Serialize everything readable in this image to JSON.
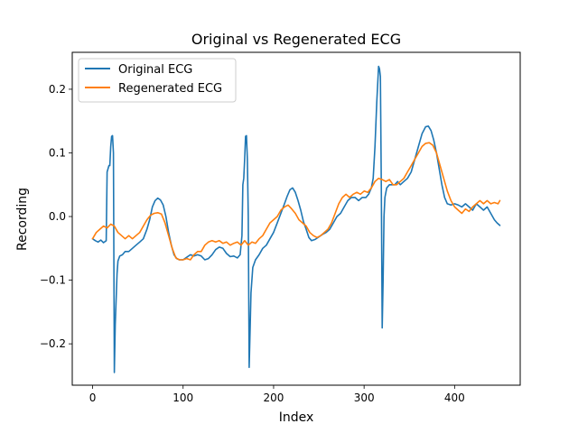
{
  "chart_data": {
    "type": "line",
    "title": "Original vs Regenerated ECG",
    "xlabel": "Index",
    "ylabel": "Recording",
    "xlim": [
      -22.5,
      472.5
    ],
    "ylim": [
      -0.265,
      0.258
    ],
    "xticks": [
      0,
      100,
      200,
      300,
      400
    ],
    "xtick_labels": [
      "0",
      "100",
      "200",
      "300",
      "400"
    ],
    "yticks": [
      -0.2,
      -0.1,
      0.0,
      0.1,
      0.2
    ],
    "ytick_labels": [
      "−0.2",
      "−0.1",
      "0.0",
      "0.1",
      "0.2"
    ],
    "grid": false,
    "legend_position": "upper-left",
    "series": [
      {
        "name": "Original ECG",
        "color": "#1f77b4",
        "points": [
          [
            0,
            -0.035
          ],
          [
            3,
            -0.038
          ],
          [
            6,
            -0.04
          ],
          [
            9,
            -0.037
          ],
          [
            12,
            -0.041
          ],
          [
            15,
            -0.038
          ],
          [
            16,
            0.07
          ],
          [
            17,
            0.075
          ],
          [
            18,
            0.08
          ],
          [
            19,
            0.08
          ],
          [
            20,
            0.11
          ],
          [
            21,
            0.126
          ],
          [
            22,
            0.127
          ],
          [
            23,
            0.1
          ],
          [
            24,
            -0.245
          ],
          [
            25,
            -0.17
          ],
          [
            26,
            -0.13
          ],
          [
            27,
            -0.09
          ],
          [
            28,
            -0.07
          ],
          [
            30,
            -0.062
          ],
          [
            33,
            -0.06
          ],
          [
            36,
            -0.055
          ],
          [
            40,
            -0.055
          ],
          [
            44,
            -0.05
          ],
          [
            48,
            -0.045
          ],
          [
            52,
            -0.04
          ],
          [
            56,
            -0.035
          ],
          [
            60,
            -0.02
          ],
          [
            63,
            -0.005
          ],
          [
            66,
            0.015
          ],
          [
            69,
            0.025
          ],
          [
            72,
            0.029
          ],
          [
            75,
            0.026
          ],
          [
            78,
            0.018
          ],
          [
            81,
            0.0
          ],
          [
            84,
            -0.025
          ],
          [
            87,
            -0.045
          ],
          [
            90,
            -0.06
          ],
          [
            93,
            -0.066
          ],
          [
            96,
            -0.068
          ],
          [
            100,
            -0.068
          ],
          [
            104,
            -0.064
          ],
          [
            108,
            -0.06
          ],
          [
            112,
            -0.062
          ],
          [
            116,
            -0.06
          ],
          [
            120,
            -0.062
          ],
          [
            124,
            -0.068
          ],
          [
            128,
            -0.066
          ],
          [
            132,
            -0.06
          ],
          [
            136,
            -0.052
          ],
          [
            140,
            -0.048
          ],
          [
            144,
            -0.05
          ],
          [
            148,
            -0.058
          ],
          [
            152,
            -0.063
          ],
          [
            156,
            -0.062
          ],
          [
            160,
            -0.065
          ],
          [
            163,
            -0.06
          ],
          [
            165,
            -0.03
          ],
          [
            166,
            0.05
          ],
          [
            167,
            0.06
          ],
          [
            168,
            0.09
          ],
          [
            169,
            0.126
          ],
          [
            170,
            0.127
          ],
          [
            171,
            0.09
          ],
          [
            172,
            0.0
          ],
          [
            173,
            -0.237
          ],
          [
            174,
            -0.18
          ],
          [
            175,
            -0.12
          ],
          [
            177,
            -0.08
          ],
          [
            180,
            -0.068
          ],
          [
            184,
            -0.06
          ],
          [
            188,
            -0.05
          ],
          [
            192,
            -0.045
          ],
          [
            196,
            -0.035
          ],
          [
            200,
            -0.025
          ],
          [
            204,
            -0.01
          ],
          [
            208,
            0.005
          ],
          [
            212,
            0.02
          ],
          [
            215,
            0.032
          ],
          [
            218,
            0.042
          ],
          [
            221,
            0.045
          ],
          [
            224,
            0.038
          ],
          [
            227,
            0.025
          ],
          [
            230,
            0.01
          ],
          [
            233,
            -0.008
          ],
          [
            236,
            -0.02
          ],
          [
            239,
            -0.033
          ],
          [
            242,
            -0.038
          ],
          [
            246,
            -0.036
          ],
          [
            250,
            -0.032
          ],
          [
            254,
            -0.028
          ],
          [
            258,
            -0.025
          ],
          [
            262,
            -0.02
          ],
          [
            266,
            -0.01
          ],
          [
            270,
            0.0
          ],
          [
            274,
            0.005
          ],
          [
            278,
            0.015
          ],
          [
            282,
            0.025
          ],
          [
            286,
            0.03
          ],
          [
            290,
            0.03
          ],
          [
            294,
            0.025
          ],
          [
            298,
            0.03
          ],
          [
            302,
            0.03
          ],
          [
            305,
            0.035
          ],
          [
            308,
            0.045
          ],
          [
            310,
            0.06
          ],
          [
            312,
            0.11
          ],
          [
            314,
            0.18
          ],
          [
            316,
            0.236
          ],
          [
            317,
            0.232
          ],
          [
            318,
            0.22
          ],
          [
            319,
            0.05
          ],
          [
            320,
            -0.175
          ],
          [
            321,
            -0.1
          ],
          [
            322,
            0.0
          ],
          [
            323,
            0.03
          ],
          [
            325,
            0.045
          ],
          [
            328,
            0.05
          ],
          [
            331,
            0.05
          ],
          [
            334,
            0.05
          ],
          [
            337,
            0.055
          ],
          [
            340,
            0.05
          ],
          [
            344,
            0.055
          ],
          [
            348,
            0.06
          ],
          [
            352,
            0.07
          ],
          [
            356,
            0.09
          ],
          [
            360,
            0.11
          ],
          [
            364,
            0.13
          ],
          [
            368,
            0.141
          ],
          [
            371,
            0.142
          ],
          [
            374,
            0.135
          ],
          [
            377,
            0.12
          ],
          [
            380,
            0.1
          ],
          [
            383,
            0.075
          ],
          [
            386,
            0.05
          ],
          [
            389,
            0.03
          ],
          [
            392,
            0.02
          ],
          [
            396,
            0.018
          ],
          [
            400,
            0.02
          ],
          [
            404,
            0.018
          ],
          [
            408,
            0.015
          ],
          [
            412,
            0.02
          ],
          [
            416,
            0.015
          ],
          [
            420,
            0.01
          ],
          [
            424,
            0.02
          ],
          [
            428,
            0.015
          ],
          [
            432,
            0.01
          ],
          [
            436,
            0.015
          ],
          [
            440,
            0.005
          ],
          [
            444,
            -0.005
          ],
          [
            447,
            -0.01
          ],
          [
            450,
            -0.014
          ]
        ]
      },
      {
        "name": "Regenerated ECG",
        "color": "#ff7f0e",
        "points": [
          [
            0,
            -0.035
          ],
          [
            4,
            -0.025
          ],
          [
            8,
            -0.02
          ],
          [
            12,
            -0.015
          ],
          [
            16,
            -0.018
          ],
          [
            20,
            -0.012
          ],
          [
            24,
            -0.015
          ],
          [
            28,
            -0.025
          ],
          [
            32,
            -0.03
          ],
          [
            36,
            -0.035
          ],
          [
            40,
            -0.03
          ],
          [
            44,
            -0.035
          ],
          [
            48,
            -0.03
          ],
          [
            52,
            -0.025
          ],
          [
            56,
            -0.015
          ],
          [
            60,
            -0.005
          ],
          [
            64,
            0.002
          ],
          [
            68,
            0.005
          ],
          [
            72,
            0.006
          ],
          [
            76,
            0.004
          ],
          [
            80,
            -0.01
          ],
          [
            84,
            -0.03
          ],
          [
            88,
            -0.05
          ],
          [
            92,
            -0.065
          ],
          [
            96,
            -0.068
          ],
          [
            100,
            -0.068
          ],
          [
            104,
            -0.066
          ],
          [
            108,
            -0.068
          ],
          [
            112,
            -0.06
          ],
          [
            116,
            -0.055
          ],
          [
            120,
            -0.055
          ],
          [
            124,
            -0.045
          ],
          [
            128,
            -0.04
          ],
          [
            132,
            -0.038
          ],
          [
            136,
            -0.04
          ],
          [
            140,
            -0.038
          ],
          [
            144,
            -0.042
          ],
          [
            148,
            -0.04
          ],
          [
            152,
            -0.045
          ],
          [
            156,
            -0.042
          ],
          [
            160,
            -0.04
          ],
          [
            164,
            -0.045
          ],
          [
            168,
            -0.038
          ],
          [
            172,
            -0.045
          ],
          [
            176,
            -0.04
          ],
          [
            180,
            -0.042
          ],
          [
            184,
            -0.035
          ],
          [
            188,
            -0.03
          ],
          [
            192,
            -0.02
          ],
          [
            196,
            -0.01
          ],
          [
            200,
            -0.005
          ],
          [
            204,
            0.0
          ],
          [
            208,
            0.01
          ],
          [
            212,
            0.015
          ],
          [
            216,
            0.018
          ],
          [
            220,
            0.012
          ],
          [
            224,
            0.005
          ],
          [
            228,
            -0.005
          ],
          [
            232,
            -0.01
          ],
          [
            236,
            -0.015
          ],
          [
            240,
            -0.025
          ],
          [
            244,
            -0.03
          ],
          [
            248,
            -0.033
          ],
          [
            252,
            -0.03
          ],
          [
            256,
            -0.025
          ],
          [
            260,
            -0.02
          ],
          [
            264,
            -0.01
          ],
          [
            268,
            0.005
          ],
          [
            272,
            0.02
          ],
          [
            276,
            0.03
          ],
          [
            280,
            0.035
          ],
          [
            284,
            0.03
          ],
          [
            288,
            0.035
          ],
          [
            292,
            0.038
          ],
          [
            296,
            0.035
          ],
          [
            300,
            0.04
          ],
          [
            304,
            0.038
          ],
          [
            308,
            0.045
          ],
          [
            312,
            0.055
          ],
          [
            316,
            0.06
          ],
          [
            320,
            0.058
          ],
          [
            324,
            0.055
          ],
          [
            328,
            0.058
          ],
          [
            332,
            0.05
          ],
          [
            336,
            0.05
          ],
          [
            340,
            0.055
          ],
          [
            344,
            0.06
          ],
          [
            348,
            0.07
          ],
          [
            352,
            0.08
          ],
          [
            356,
            0.09
          ],
          [
            360,
            0.1
          ],
          [
            364,
            0.11
          ],
          [
            368,
            0.115
          ],
          [
            372,
            0.116
          ],
          [
            376,
            0.112
          ],
          [
            380,
            0.1
          ],
          [
            384,
            0.08
          ],
          [
            388,
            0.06
          ],
          [
            392,
            0.04
          ],
          [
            396,
            0.025
          ],
          [
            400,
            0.015
          ],
          [
            404,
            0.01
          ],
          [
            408,
            0.005
          ],
          [
            412,
            0.012
          ],
          [
            416,
            0.008
          ],
          [
            420,
            0.015
          ],
          [
            424,
            0.02
          ],
          [
            428,
            0.025
          ],
          [
            432,
            0.02
          ],
          [
            436,
            0.025
          ],
          [
            440,
            0.02
          ],
          [
            444,
            0.022
          ],
          [
            448,
            0.02
          ],
          [
            450,
            0.025
          ]
        ]
      }
    ]
  }
}
